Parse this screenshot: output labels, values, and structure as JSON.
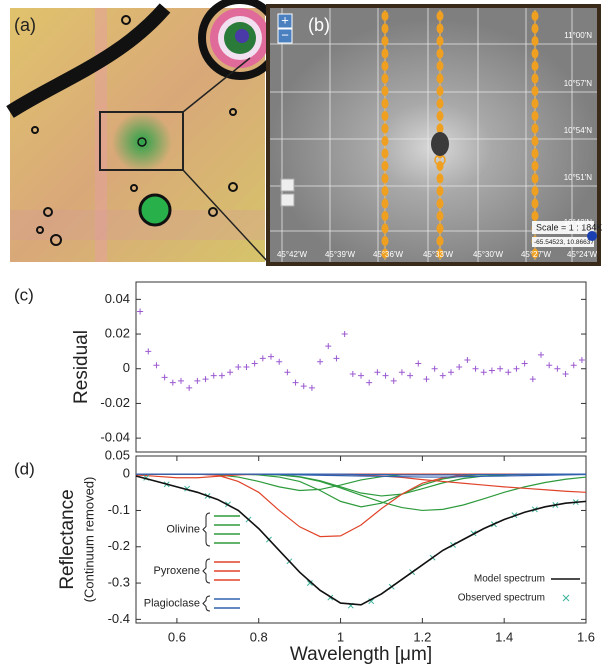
{
  "images": {
    "a": {
      "label": "(a)"
    },
    "b": {
      "label": "(b)",
      "zoom": [
        "+",
        "−"
      ],
      "lat_labels": [
        "11°00'N",
        "10°57'N",
        "10°54'N",
        "10°51'N",
        "10°48'N"
      ],
      "lon_labels": [
        "45°42'W",
        "45°39'W",
        "45°36'W",
        "45°33'W",
        "45°30'W",
        "45°27'W",
        "45°24'W"
      ],
      "scale": "Scale = 1 : 184K",
      "cursor": "-65.54523, 10.86637"
    }
  },
  "chart_data": [
    {
      "type": "scatter",
      "panel": "(c)",
      "ylabel": "Residual",
      "color": "#9b59d0",
      "marker": "+",
      "xlim": [
        0.5,
        1.6
      ],
      "ylim": [
        -0.048,
        0.05
      ],
      "yticks": [
        -0.04,
        -0.02,
        0,
        0.02,
        0.04
      ],
      "x": [
        0.51,
        0.53,
        0.55,
        0.57,
        0.59,
        0.61,
        0.63,
        0.65,
        0.67,
        0.69,
        0.71,
        0.73,
        0.75,
        0.77,
        0.79,
        0.81,
        0.83,
        0.85,
        0.87,
        0.89,
        0.91,
        0.93,
        0.95,
        0.97,
        0.99,
        1.01,
        1.03,
        1.05,
        1.07,
        1.09,
        1.11,
        1.13,
        1.15,
        1.17,
        1.19,
        1.21,
        1.23,
        1.25,
        1.27,
        1.29,
        1.31,
        1.33,
        1.35,
        1.37,
        1.39,
        1.41,
        1.43,
        1.45,
        1.47,
        1.49,
        1.51,
        1.53,
        1.55,
        1.57,
        1.59
      ],
      "values": [
        0.033,
        0.01,
        0.002,
        -0.005,
        -0.008,
        -0.007,
        -0.011,
        -0.007,
        -0.006,
        -0.004,
        -0.004,
        -0.002,
        0.001,
        0.001,
        0.003,
        0.006,
        0.007,
        0.004,
        -0.002,
        -0.008,
        -0.01,
        -0.011,
        0.004,
        0.013,
        0.006,
        0.02,
        -0.003,
        -0.004,
        -0.008,
        -0.002,
        -0.004,
        -0.007,
        -0.002,
        -0.004,
        0.003,
        -0.006,
        0,
        -0.004,
        -0.002,
        0.001,
        0.005,
        0,
        -0.002,
        -0.001,
        0,
        -0.002,
        0,
        0.003,
        -0.006,
        0.008,
        0.002,
        0,
        -0.003,
        0.002,
        0.005
      ]
    },
    {
      "type": "line",
      "panel": "(d)",
      "ylabel": "Reflectance",
      "ylabel2": "(Continuum removed)",
      "xlabel": "Wavelength [μm]",
      "xlim": [
        0.5,
        1.6
      ],
      "xticks": [
        0.6,
        0.8,
        1,
        1.2,
        1.4,
        1.6
      ],
      "ylim": [
        -0.41,
        0.05
      ],
      "yticks": [
        -0.4,
        -0.3,
        -0.2,
        -0.1,
        0,
        0.05
      ],
      "x": [
        0.5,
        0.55,
        0.6,
        0.65,
        0.7,
        0.75,
        0.8,
        0.85,
        0.9,
        0.95,
        1,
        1.05,
        1.1,
        1.15,
        1.2,
        1.25,
        1.3,
        1.35,
        1.4,
        1.45,
        1.5,
        1.55,
        1.6
      ],
      "series": [
        {
          "name": "Model spectrum",
          "color": "#111111",
          "values": [
            -0.005,
            -0.02,
            -0.035,
            -0.05,
            -0.07,
            -0.1,
            -0.15,
            -0.21,
            -0.27,
            -0.32,
            -0.355,
            -0.36,
            -0.33,
            -0.29,
            -0.25,
            -0.21,
            -0.18,
            -0.15,
            -0.125,
            -0.105,
            -0.09,
            -0.08,
            -0.075
          ]
        },
        {
          "name": "Observed spectrum",
          "color": "#3cb39a",
          "marker": "x",
          "x": [
            0.525,
            0.575,
            0.625,
            0.675,
            0.725,
            0.775,
            0.825,
            0.875,
            0.925,
            0.975,
            1.025,
            1.075,
            1.125,
            1.175,
            1.225,
            1.275,
            1.325,
            1.375,
            1.425,
            1.475,
            1.525,
            1.575
          ],
          "values": [
            -0.01,
            -0.028,
            -0.04,
            -0.06,
            -0.083,
            -0.125,
            -0.18,
            -0.24,
            -0.3,
            -0.34,
            -0.362,
            -0.35,
            -0.31,
            -0.27,
            -0.23,
            -0.195,
            -0.163,
            -0.138,
            -0.113,
            -0.097,
            -0.085,
            -0.077
          ]
        }
      ],
      "components": [
        {
          "name": "Olivine",
          "color": "#2e9b3c",
          "bands": [
            [
              0,
              0,
              0,
              0,
              0,
              0,
              -0.002,
              -0.008,
              -0.02,
              -0.045,
              -0.075,
              -0.09,
              -0.08,
              -0.055,
              -0.03,
              -0.013,
              -0.005,
              -0.001,
              0,
              0,
              0,
              0,
              0
            ],
            [
              0,
              0,
              0,
              0,
              0,
              0,
              0,
              -0.002,
              -0.008,
              -0.02,
              -0.038,
              -0.058,
              -0.077,
              -0.092,
              -0.1,
              -0.097,
              -0.085,
              -0.068,
              -0.05,
              -0.035,
              -0.023,
              -0.014,
              -0.008
            ],
            [
              0,
              0,
              0,
              0,
              -0.002,
              -0.008,
              -0.02,
              -0.035,
              -0.045,
              -0.042,
              -0.03,
              -0.016,
              -0.007,
              -0.002,
              0,
              0,
              0,
              0,
              0,
              0,
              0,
              0,
              0
            ],
            [
              0,
              0,
              0,
              0,
              0,
              0,
              0,
              -0.002,
              -0.007,
              -0.018,
              -0.035,
              -0.052,
              -0.06,
              -0.055,
              -0.04,
              -0.024,
              -0.012,
              -0.005,
              -0.002,
              0,
              0,
              0,
              0
            ]
          ]
        },
        {
          "name": "Pyroxene",
          "color": "#e0442a",
          "bands": [
            [
              0,
              0,
              0,
              0,
              -0.003,
              -0.02,
              -0.05,
              -0.1,
              -0.145,
              -0.172,
              -0.17,
              -0.14,
              -0.095,
              -0.055,
              -0.025,
              -0.01,
              -0.003,
              0,
              0,
              0,
              0,
              0,
              0
            ],
            [
              0,
              0,
              0,
              0,
              0,
              0,
              0,
              0,
              0,
              0,
              0,
              -0.002,
              -0.005,
              -0.009,
              -0.015,
              -0.02,
              -0.025,
              -0.03,
              -0.035,
              -0.039,
              -0.043,
              -0.047,
              -0.05
            ],
            [
              -0.002,
              -0.006,
              -0.01,
              -0.01,
              -0.006,
              -0.002,
              0,
              0,
              0,
              0,
              0,
              0,
              0,
              0,
              0,
              0,
              0,
              0,
              0,
              0,
              0,
              0,
              0
            ]
          ]
        },
        {
          "name": "Plagioclase",
          "color": "#3060b0",
          "bands": [
            [
              0,
              0,
              0,
              0,
              0,
              0,
              0,
              -0.001,
              -0.002,
              -0.003,
              -0.004,
              -0.005,
              -0.006,
              -0.007,
              -0.008,
              -0.008,
              -0.007,
              -0.006,
              -0.005,
              -0.004,
              -0.003,
              -0.002,
              -0.001
            ],
            [
              0,
              0,
              0,
              0,
              0,
              0,
              0,
              0,
              0,
              0,
              0,
              -0.001,
              -0.001,
              -0.002,
              -0.002,
              -0.002,
              -0.002,
              -0.001,
              -0.001,
              0,
              0,
              0,
              0
            ]
          ]
        }
      ]
    }
  ]
}
